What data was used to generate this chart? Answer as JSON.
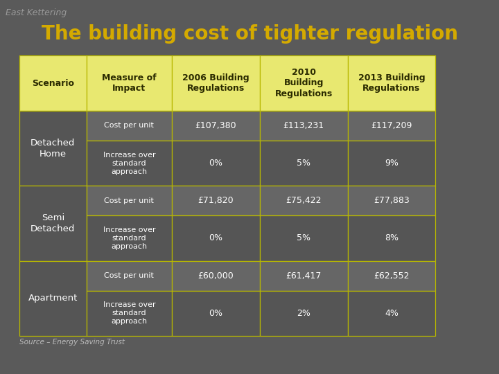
{
  "title": "The building cost of tighter regulation",
  "watermark": "East Kettering",
  "source": "Source – Energy Saving Trust",
  "bg_color": "#5a5a5a",
  "header_bg": "#e8e870",
  "header_text_color": "#2a2a00",
  "data_bg_light": "#666666",
  "data_bg_dark": "#555555",
  "scenario_bg": "#555555",
  "scenario_text": "#ffffff",
  "border_color": "#b8b800",
  "title_color": "#d4aa00",
  "watermark_color": "#999999",
  "source_color": "#bbbbbb",
  "col_headers": [
    "Scenario",
    "Measure of\nImpact",
    "2006 Building\nRegulations",
    "2010\nBuilding\nRegulations",
    "2013 Building\nRegulations"
  ],
  "scenario_labels": [
    "Detached\nHome",
    "Semi\nDetached",
    "Apartment"
  ],
  "rows": [
    {
      "measure": "Cost per unit",
      "v2006": "£107,380",
      "v2010": "£113,231",
      "v2013": "£117,209",
      "light": true
    },
    {
      "measure": "Increase over\nstandard\napproach",
      "v2006": "0%",
      "v2010": "5%",
      "v2013": "9%",
      "light": false
    },
    {
      "measure": "Cost per unit",
      "v2006": "£71,820",
      "v2010": "£75,422",
      "v2013": "£77,883",
      "light": true
    },
    {
      "measure": "Increase over\nstandard\napproach",
      "v2006": "0%",
      "v2010": "5%",
      "v2013": "8%",
      "light": false
    },
    {
      "measure": "Cost per unit",
      "v2006": "£60,000",
      "v2010": "£61,417",
      "v2013": "£62,552",
      "light": true
    },
    {
      "measure": "Increase over\nstandard\napproach",
      "v2006": "0%",
      "v2010": "2%",
      "v2013": "4%",
      "light": false
    }
  ]
}
